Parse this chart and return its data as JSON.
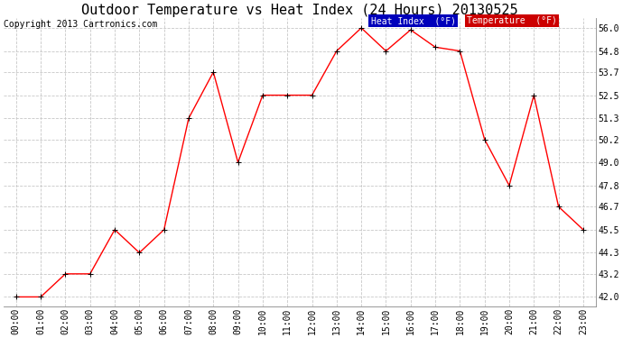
{
  "title": "Outdoor Temperature vs Heat Index (24 Hours) 20130525",
  "copyright": "Copyright 2013 Cartronics.com",
  "x_labels": [
    "00:00",
    "01:00",
    "02:00",
    "03:00",
    "04:00",
    "05:00",
    "06:00",
    "07:00",
    "08:00",
    "09:00",
    "10:00",
    "11:00",
    "12:00",
    "13:00",
    "14:00",
    "15:00",
    "16:00",
    "17:00",
    "18:00",
    "19:00",
    "20:00",
    "21:00",
    "22:00",
    "23:00"
  ],
  "temperature": [
    42.0,
    42.0,
    43.2,
    43.2,
    45.5,
    44.3,
    45.5,
    51.3,
    53.7,
    49.0,
    52.5,
    52.5,
    52.5,
    54.8,
    56.0,
    54.8,
    55.9,
    55.0,
    54.8,
    50.2,
    47.8,
    52.5,
    46.7,
    45.5
  ],
  "y_ticks": [
    42.0,
    43.2,
    44.3,
    45.5,
    46.7,
    47.8,
    49.0,
    50.2,
    51.3,
    52.5,
    53.7,
    54.8,
    56.0
  ],
  "ylim": [
    41.5,
    56.5
  ],
  "line_color": "#ff0000",
  "marker": "+",
  "background_color": "#ffffff",
  "plot_bg_color": "#ffffff",
  "grid_color": "#c8c8c8",
  "title_fontsize": 11,
  "copyright_fontsize": 7,
  "tick_fontsize": 7,
  "legend_heat_bg": "#0000bb",
  "legend_temp_bg": "#cc0000",
  "legend_text_color": "#ffffff"
}
